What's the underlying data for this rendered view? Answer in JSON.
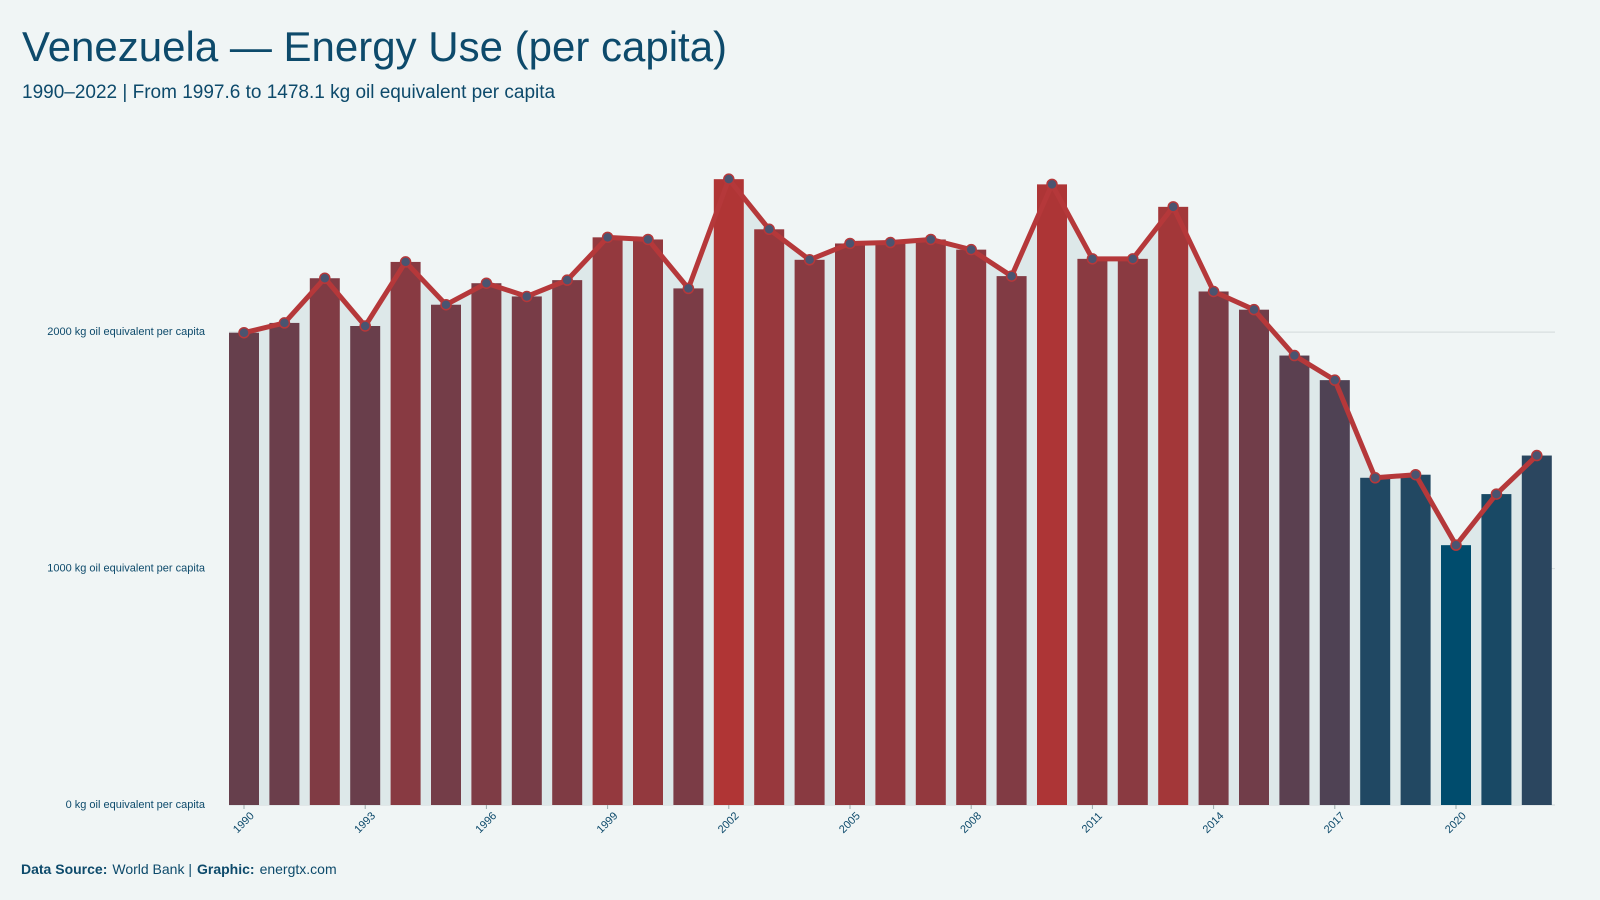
{
  "chart_data": {
    "type": "bar-line",
    "title": "Venezuela — Energy Use (per capita)",
    "subtitle": "1990–2022 | From 1997.6 to 1478.1 kg oil equivalent per capita",
    "x": [
      1990,
      1991,
      1992,
      1993,
      1994,
      1995,
      1996,
      1997,
      1998,
      1999,
      2000,
      2001,
      2002,
      2003,
      2004,
      2005,
      2006,
      2007,
      2008,
      2009,
      2010,
      2011,
      2012,
      2013,
      2014,
      2015,
      2016,
      2017,
      2018,
      2019,
      2020,
      2021,
      2022
    ],
    "values": [
      1997.6,
      2039,
      2228,
      2026,
      2297,
      2116,
      2207,
      2151,
      2220,
      2401,
      2392,
      2185,
      2647,
      2435,
      2306,
      2375,
      2379,
      2392,
      2349,
      2237,
      2625,
      2310,
      2310,
      2530,
      2172,
      2095,
      1901,
      1797,
      1384,
      1397,
      1099,
      1315,
      1478.1
    ],
    "xticks": [
      1990,
      1993,
      1996,
      1999,
      2002,
      2005,
      2008,
      2011,
      2014,
      2017,
      2020
    ],
    "ylim": [
      0,
      2800
    ],
    "yticks": [
      {
        "value": 0,
        "label": "0 kg oil equivalent per capita"
      },
      {
        "value": 1000,
        "label": "1000 kg oil equivalent per capita"
      },
      {
        "value": 2000,
        "label": "2000 kg oil equivalent per capita"
      }
    ],
    "grid": true,
    "bar_color_scale": [
      "#004c6d",
      "#b03535"
    ],
    "line_color": "#b5383a",
    "point_color": "#4a5470",
    "area_color": "#dde8e9",
    "footer": [
      {
        "text": "Data Source:",
        "bold": true
      },
      {
        "text": "World Bank |",
        "bold": false
      },
      {
        "text": "Graphic:",
        "bold": true
      },
      {
        "text": "energtx.com",
        "bold": false
      }
    ]
  }
}
